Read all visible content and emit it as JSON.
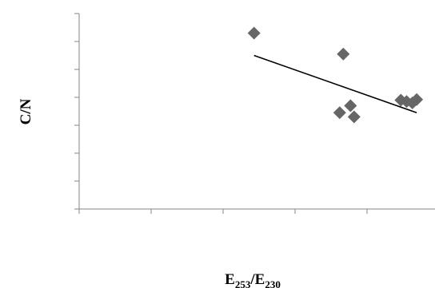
{
  "chart_data": {
    "type": "scatter",
    "xlabel_base": "E",
    "xlabel_sub1": "253",
    "xlabel_sep": "/E",
    "xlabel_sub2": "230",
    "ylabel": "C/N",
    "xlim": [
      0,
      5
    ],
    "ylim": [
      0,
      7
    ],
    "grid": false,
    "legend": "none",
    "marker_color": "#666666",
    "trendline_color": "#000000",
    "axis_color": "#868686",
    "points": [
      {
        "x": 2.43,
        "y": 6.3
      },
      {
        "x": 3.67,
        "y": 5.55
      },
      {
        "x": 3.62,
        "y": 3.45
      },
      {
        "x": 3.77,
        "y": 3.7
      },
      {
        "x": 3.82,
        "y": 3.3
      },
      {
        "x": 4.47,
        "y": 3.9
      },
      {
        "x": 4.55,
        "y": 3.85
      },
      {
        "x": 4.63,
        "y": 3.8
      },
      {
        "x": 4.69,
        "y": 3.92
      }
    ],
    "trendline": {
      "x": [
        2.43,
        4.69
      ],
      "y": [
        5.5,
        3.45
      ]
    }
  }
}
